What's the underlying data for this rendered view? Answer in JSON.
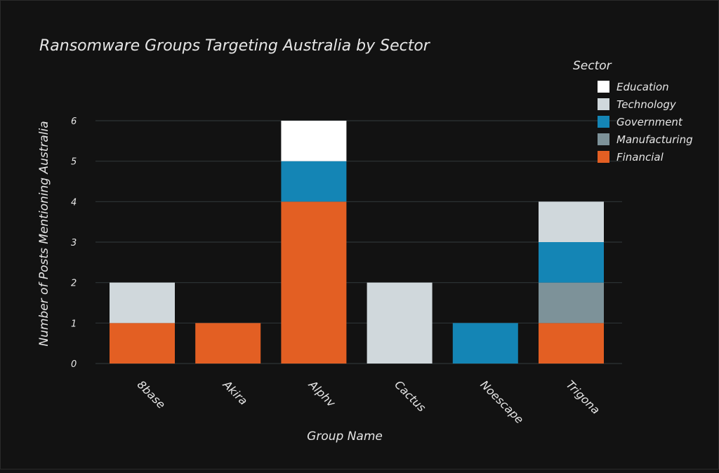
{
  "chart_data": {
    "type": "bar",
    "stacked": true,
    "title": "Ransomware Groups Targeting Australia by Sector",
    "xlabel": "Group Name",
    "ylabel": "Number of Posts Mentioning Australia",
    "categories": [
      "8base",
      "Akira",
      "Alphv",
      "Cactus",
      "Noescape",
      "Trigona"
    ],
    "ylim": [
      0,
      6
    ],
    "yticks": [
      0,
      1,
      2,
      3,
      4,
      5,
      6
    ],
    "grid": true,
    "legend": {
      "title": "Sector",
      "placement": "top-right",
      "entries": [
        "Education",
        "Technology",
        "Government",
        "Manufacturing",
        "Financial"
      ]
    },
    "series": [
      {
        "name": "Financial",
        "color": "#e35f23",
        "values": [
          1,
          1,
          4,
          0,
          0,
          1
        ]
      },
      {
        "name": "Manufacturing",
        "color": "#7d9299",
        "values": [
          0,
          0,
          0,
          0,
          0,
          1
        ]
      },
      {
        "name": "Government",
        "color": "#1485b5",
        "values": [
          0,
          0,
          1,
          0,
          1,
          1
        ]
      },
      {
        "name": "Technology",
        "color": "#d0d8dc",
        "values": [
          1,
          0,
          0,
          2,
          0,
          1
        ]
      },
      {
        "name": "Education",
        "color": "#ffffff",
        "values": [
          0,
          0,
          1,
          0,
          0,
          0
        ]
      }
    ]
  }
}
